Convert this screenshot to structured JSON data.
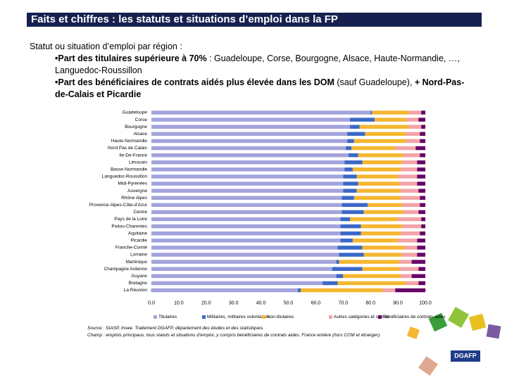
{
  "header": {
    "title": "Faits et chiffres : les statuts et situations d’emploi dans la FP"
  },
  "text": {
    "heading": "Statut ou situation d’emploi par région :",
    "bullets": [
      [
        "•Part des titulaires supérieure à 70%",
        " : Guadeloupe, Corse, Bourgogne, Alsace, Haute-Normandie, …, Languedoc-Roussillon"
      ],
      [
        "•Part des bénéficiaires de contrats aidés plus élevée dans les DOM",
        " (sauf Guadeloupe), ",
        "+ Nord-Pas-de-Calais et Picardie"
      ]
    ]
  },
  "chart_data": {
    "type": "stacked-barh",
    "categories": [
      "Guadeloupe",
      "Corse",
      "Bourgogne",
      "Alsace",
      "Haute-Normandie",
      "Nord Pas de Calais",
      "Ile-De-France",
      "Limousin",
      "Basse-Normandie",
      "Languedoc-Roussillon",
      "Midi-Pyrénées",
      "Auvergne",
      "Rhône Alpes",
      "Provence-Alpes-Côte-d'Azur",
      "Centre",
      "Pays de la Loire",
      "Poitou-Charentes",
      "Aquitaine",
      "Picardie",
      "Franche-Comté",
      "Lorraine",
      "Martinique",
      "Champagne Ardenne",
      "Guyane",
      "Bretagne",
      "La Réunion"
    ],
    "series": [
      {
        "name": "Titulaires",
        "color": "#a3a3dc",
        "values": [
          80,
          72.5,
          72.5,
          71.5,
          71.5,
          71,
          72,
          70.5,
          70.5,
          70,
          70,
          70,
          69.5,
          69.5,
          69.5,
          69,
          69,
          69,
          69,
          68,
          68.5,
          67.5,
          66,
          67.5,
          62.5,
          53.5
        ]
      },
      {
        "name": "Militaires, militaires volontaires",
        "color": "#3a68c8",
        "values": [
          0.5,
          9,
          3.5,
          6.5,
          2.5,
          2,
          3.5,
          6.5,
          3,
          5,
          5.5,
          5,
          4.5,
          9.5,
          8,
          3.5,
          7.5,
          7.5,
          4.5,
          9,
          9,
          1,
          11,
          2.5,
          5.5,
          1
        ]
      },
      {
        "name": "Non-titulaires",
        "color": "#f5b630",
        "values": [
          13.5,
          11.5,
          18,
          15,
          19,
          16,
          16.5,
          14.5,
          17.5,
          15,
          15,
          16,
          17,
          12.5,
          14.5,
          17.5,
          15,
          14.5,
          16.5,
          15.5,
          14,
          22,
          13.5,
          21,
          25,
          30
        ]
      },
      {
        "name": "Autres catégories et statuts",
        "color": "#f2a4a8",
        "values": [
          4.5,
          4.5,
          4.5,
          5,
          5,
          7.5,
          6,
          5.5,
          6,
          7,
          6.5,
          6.5,
          7,
          6.5,
          5.5,
          8.5,
          7,
          7,
          7,
          4.5,
          5.5,
          4.5,
          7,
          4,
          4.5,
          4.5
        ]
      },
      {
        "name": "Bénéficiaires de contrats aidés",
        "color": "#660066",
        "values": [
          1.5,
          2.5,
          1.5,
          2,
          2,
          3.5,
          2,
          3,
          3,
          3,
          3,
          2.5,
          2,
          2,
          2.5,
          1.5,
          1.5,
          2,
          3,
          3,
          3,
          5,
          2.5,
          5,
          2.5,
          11
        ]
      }
    ],
    "xlim": [
      0,
      100
    ],
    "xticks": [
      {
        "value": 0,
        "label": "0.0"
      },
      {
        "value": 10,
        "label": "10.0"
      },
      {
        "value": 20,
        "label": "20.0"
      },
      {
        "value": 30,
        "label": "30.0"
      },
      {
        "value": 40,
        "label": "40.0"
      },
      {
        "value": 50,
        "label": "50.0"
      },
      {
        "value": 60,
        "label": "60.0"
      },
      {
        "value": 70,
        "label": "70.0"
      },
      {
        "value": 80,
        "label": "80.0"
      },
      {
        "value": 90,
        "label": "90.0"
      },
      {
        "value": 100,
        "label": "100.0"
      }
    ]
  },
  "footer": {
    "source": "Source : SIASP, Insee. Traitement DGAFP, département des études et des statistiques.",
    "scope": "Champ : emplois principaux, tous statuts et situations d’emploi, y compris bénéficiaires de contrats aidés. France entière (hors COM et étranger).",
    "logo": "DGAFP"
  }
}
